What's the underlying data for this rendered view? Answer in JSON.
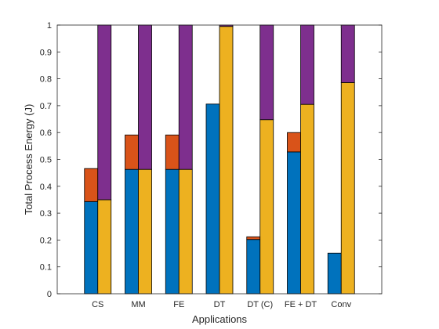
{
  "chart_data": {
    "type": "bar",
    "stacked_grouped": true,
    "title": "",
    "xlabel": "Applications",
    "ylabel": "Total Process Energy (J)",
    "ylim": [
      0,
      1
    ],
    "yticks": [
      0,
      0.1,
      0.2,
      0.3,
      0.4,
      0.5,
      0.6,
      0.7,
      0.8,
      0.9,
      1
    ],
    "ytick_labels": [
      "0",
      "0.1",
      "0.2",
      "0.3",
      "0.4",
      "0.5",
      "0.6",
      "0.7",
      "0.8",
      "0.9",
      "1"
    ],
    "grid": false,
    "legend": "none",
    "categories": [
      "CS",
      "MM",
      "FE",
      "DT",
      "DT (C)",
      "FE + DT",
      "Conv"
    ],
    "colors": {
      "blue": "#0072BD",
      "orange": "#D95319",
      "yellow": "#EDB120",
      "purple": "#7E2F8E"
    },
    "bars": [
      {
        "group": "left",
        "stacks": [
          {
            "color": "blue",
            "values": [
              0.343,
              0.463,
              0.463,
              0.706,
              0.202,
              0.528,
              0.151
            ]
          },
          {
            "color": "orange",
            "values": [
              0.123,
              0.128,
              0.128,
              0.0,
              0.01,
              0.072,
              0.0
            ]
          }
        ]
      },
      {
        "group": "right",
        "stacks": [
          {
            "color": "yellow",
            "values": [
              0.35,
              0.463,
              0.463,
              0.995,
              0.648,
              0.705,
              0.786
            ]
          },
          {
            "color": "purple",
            "values": [
              0.65,
              0.537,
              0.537,
              0.005,
              0.352,
              0.295,
              0.214
            ]
          }
        ]
      }
    ]
  }
}
